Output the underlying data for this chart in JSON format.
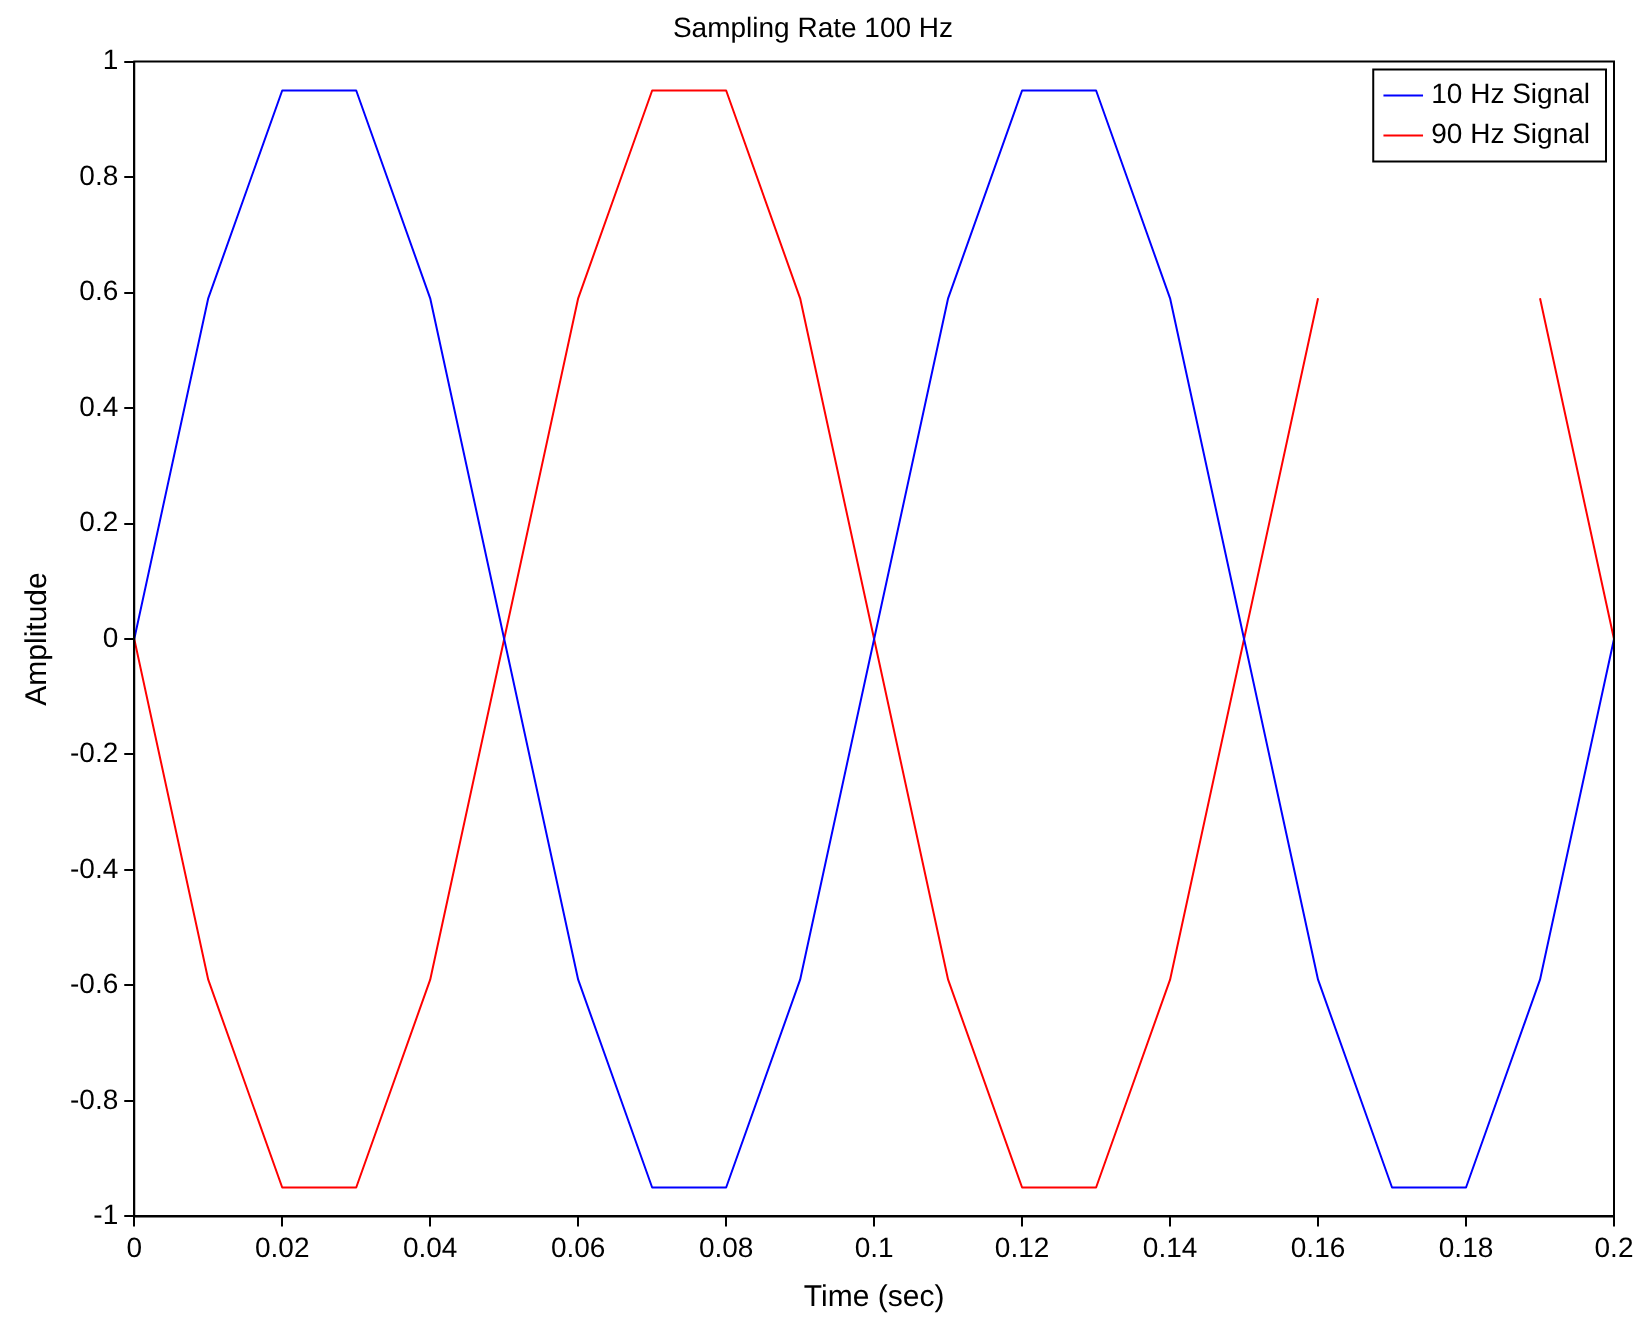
{
  "chart_data": {
    "type": "line",
    "title": "Sampling Rate 100 Hz",
    "xlabel": "Time (sec)",
    "ylabel": "Amplitude",
    "x": [
      0,
      0.01,
      0.02,
      0.03,
      0.04,
      0.05,
      0.06,
      0.07,
      0.08,
      0.09,
      0.1,
      0.11,
      0.12,
      0.13,
      0.14,
      0.15,
      0.16,
      0.17,
      0.18,
      0.19,
      0.2
    ],
    "series": [
      {
        "name": "10 Hz Signal",
        "color": "#0000ff",
        "values": [
          0,
          0.59,
          0.95,
          0.95,
          0.59,
          0,
          -0.59,
          -0.95,
          -0.95,
          -0.59,
          0,
          0.59,
          0.95,
          0.95,
          0.59,
          0,
          -0.59,
          -0.95,
          -0.95,
          -0.59,
          0
        ]
      },
      {
        "name": "90 Hz Signal",
        "color": "#ff0000",
        "values": [
          0,
          -0.59,
          -0.95,
          -0.95,
          -0.59,
          0,
          0.59,
          0.95,
          0.95,
          0.59,
          0,
          -0.59,
          -0.95,
          -0.95,
          -0.59,
          0,
          0.59,
          null,
          null,
          0.59,
          0
        ]
      }
    ],
    "xlim": [
      0,
      0.2
    ],
    "xticks": [
      0,
      0.02,
      0.04,
      0.06,
      0.08,
      0.1,
      0.12,
      0.14,
      0.16,
      0.18,
      0.2
    ],
    "ylim": [
      -1,
      1
    ],
    "yticks": [
      -1,
      -0.8,
      -0.6,
      -0.4,
      -0.2,
      0,
      0.2,
      0.4,
      0.6,
      0.8,
      1
    ],
    "grid": false,
    "legend": "top right",
    "marker": "none",
    "line_style": "solid"
  }
}
